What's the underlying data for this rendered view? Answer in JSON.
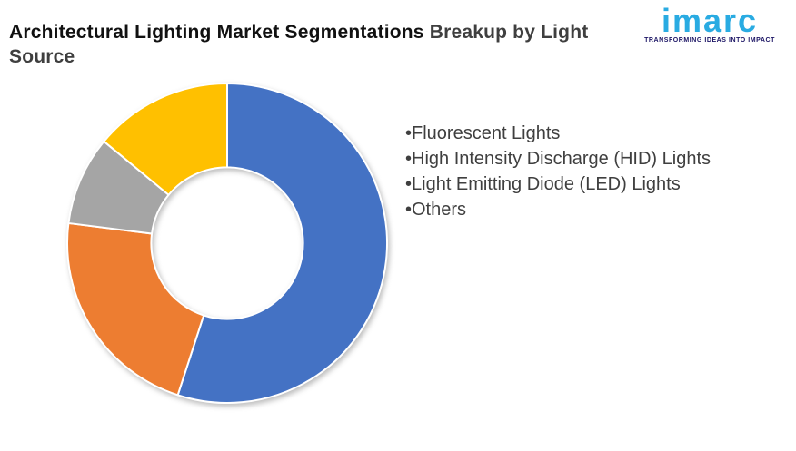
{
  "header": {
    "title_primary": "Architectural Lighting Market Segmentations",
    "title_secondary": "Breakup by Light Source"
  },
  "logo": {
    "brand": "imarc",
    "tagline": "TRANSFORMING IDEAS INTO IMPACT",
    "brand_color": "#29abe2",
    "tagline_color": "#1b1464"
  },
  "chart_data": {
    "type": "pie",
    "subtype": "donut",
    "title": "Architectural Lighting Market Segmentations Breakup by Light Source",
    "categories": [
      "Fluorescent Lights",
      "High Intensity Discharge (HID) Lights",
      "Light Emitting Diode (LED) Lights",
      "Others"
    ],
    "values_pct": [
      55,
      22,
      9,
      14
    ],
    "colors": [
      "#4472C4",
      "#ED7D31",
      "#A5A5A5",
      "#FFC000"
    ],
    "start_angle_deg": 0,
    "direction": "clockwise",
    "inner_radius_ratio": 0.475,
    "slice_border_color": "#FFFFFF",
    "data_labels": false,
    "legend_position": "right",
    "legend_bullet": "•"
  }
}
